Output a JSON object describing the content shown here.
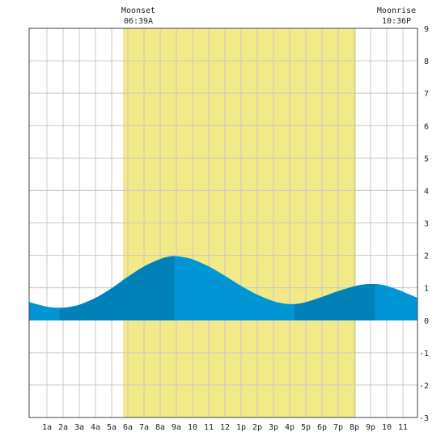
{
  "chart_data": {
    "type": "area",
    "title": "",
    "xlabel": "",
    "ylabel": "",
    "x_unit": "hour of day",
    "xlim": [
      -0.1,
      23.9
    ],
    "ylim": [
      -3,
      9
    ],
    "y_ticks": [
      -3,
      -2,
      -1,
      0,
      1,
      2,
      3,
      4,
      5,
      6,
      7,
      8,
      9
    ],
    "x_ticks": [
      {
        "hour": 1,
        "label": "1a"
      },
      {
        "hour": 2,
        "label": "2a"
      },
      {
        "hour": 3,
        "label": "3a"
      },
      {
        "hour": 4,
        "label": "4a"
      },
      {
        "hour": 5,
        "label": "5a"
      },
      {
        "hour": 6,
        "label": "6a"
      },
      {
        "hour": 7,
        "label": "7a"
      },
      {
        "hour": 8,
        "label": "8a"
      },
      {
        "hour": 9,
        "label": "9a"
      },
      {
        "hour": 10,
        "label": "10"
      },
      {
        "hour": 11,
        "label": "11"
      },
      {
        "hour": 12,
        "label": "12"
      },
      {
        "hour": 13,
        "label": "1p"
      },
      {
        "hour": 14,
        "label": "2p"
      },
      {
        "hour": 15,
        "label": "3p"
      },
      {
        "hour": 16,
        "label": "4p"
      },
      {
        "hour": 17,
        "label": "5p"
      },
      {
        "hour": 18,
        "label": "6p"
      },
      {
        "hour": 19,
        "label": "7p"
      },
      {
        "hour": 20,
        "label": "8p"
      },
      {
        "hour": 21,
        "label": "9p"
      },
      {
        "hour": 22,
        "label": "10"
      },
      {
        "hour": 23,
        "label": "11"
      }
    ],
    "grid": true,
    "daylight": {
      "start": 5.7,
      "end": 20.1
    },
    "annotations": [
      {
        "label": "Moonset",
        "time": "06:39A",
        "hour": 6.65
      },
      {
        "label": "Moonrise",
        "time": "10:36P",
        "hour": 22.6
      }
    ],
    "series": [
      {
        "x": [
          -0.1,
          0.5,
          1,
          1.5,
          2,
          2.5,
          3,
          4,
          5,
          6,
          7,
          8,
          8.5,
          8.9,
          9.5,
          10,
          11,
          12,
          13,
          14,
          15,
          15.5,
          16,
          16.5,
          17,
          18,
          19,
          20,
          20.5,
          21,
          21.5,
          22,
          22.5,
          23,
          23.9
        ],
        "values": [
          0.55,
          0.47,
          0.41,
          0.38,
          0.38,
          0.41,
          0.47,
          0.68,
          0.98,
          1.33,
          1.65,
          1.88,
          1.95,
          1.97,
          1.93,
          1.87,
          1.65,
          1.36,
          1.05,
          0.78,
          0.58,
          0.52,
          0.49,
          0.5,
          0.55,
          0.71,
          0.89,
          1.04,
          1.09,
          1.11,
          1.1,
          1.05,
          0.97,
          0.87,
          0.68
        ]
      }
    ],
    "tide_segments": [
      {
        "from": -0.1,
        "to": 1.8,
        "trend": "falling",
        "color": "#0096d6"
      },
      {
        "from": 1.8,
        "to": 8.9,
        "trend": "rising",
        "color": "#0081b8"
      },
      {
        "from": 8.9,
        "to": 16.3,
        "trend": "falling",
        "color": "#0096d6"
      },
      {
        "from": 16.3,
        "to": 21.3,
        "trend": "rising",
        "color": "#0081b8"
      },
      {
        "from": 21.3,
        "to": 23.9,
        "trend": "falling",
        "color": "#0096d6"
      }
    ],
    "colors": {
      "daylight": "#f2e988",
      "grid": "#c8c8c8",
      "border": "#444444",
      "text": "#222222"
    }
  }
}
